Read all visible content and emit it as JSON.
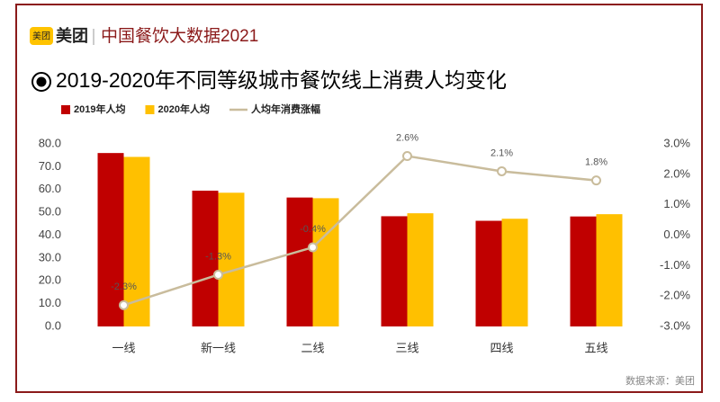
{
  "header": {
    "logo_badge": "美团",
    "brand": "美团",
    "subtitle": "中国餐饮大数据2021"
  },
  "source": "数据来源：美团",
  "chart_data": {
    "type": "bar-line",
    "title": "2019-2020年不同等级城市餐饮线上消费人均变化",
    "categories": [
      "一线",
      "新一线",
      "二线",
      "三线",
      "四线",
      "五线"
    ],
    "series": [
      {
        "name": "2019年人均",
        "color": "#c00000",
        "type": "bar",
        "values": [
          76.0,
          59.5,
          56.5,
          48.3,
          46.3,
          48.2
        ]
      },
      {
        "name": "2020年人均",
        "color": "#ffc000",
        "type": "bar",
        "values": [
          74.3,
          58.6,
          56.2,
          49.6,
          47.2,
          49.2
        ]
      },
      {
        "name": "人均年消费涨幅",
        "color": "#c9bc9c",
        "type": "line",
        "axis": "y2",
        "values": [
          -2.3,
          -1.3,
          -0.4,
          2.6,
          2.1,
          1.8
        ],
        "value_labels": [
          "-2.3%",
          "-1.3%",
          "-0.4%",
          "2.6%",
          "2.1%",
          "1.8%"
        ]
      }
    ],
    "ylim": [
      0,
      80
    ],
    "yticks": [
      {
        "value": 0,
        "label": "0.0"
      },
      {
        "value": 10,
        "label": "10.0"
      },
      {
        "value": 20,
        "label": "20.0"
      },
      {
        "value": 30,
        "label": "30.0"
      },
      {
        "value": 40,
        "label": "40.0"
      },
      {
        "value": 50,
        "label": "50.0"
      },
      {
        "value": 60,
        "label": "60.0"
      },
      {
        "value": 70,
        "label": "70.0"
      },
      {
        "value": 80,
        "label": "80.0"
      }
    ],
    "y2lim": [
      -3,
      3
    ],
    "y2ticks": [
      {
        "value": -3,
        "label": "-3.0%"
      },
      {
        "value": -2,
        "label": "-2.0%"
      },
      {
        "value": -1,
        "label": "-1.0%"
      },
      {
        "value": 0,
        "label": "0.0%"
      },
      {
        "value": 1,
        "label": "1.0%"
      },
      {
        "value": 2,
        "label": "2.0%"
      },
      {
        "value": 3,
        "label": "3.0%"
      }
    ],
    "grid": false,
    "legend": "top-left"
  }
}
